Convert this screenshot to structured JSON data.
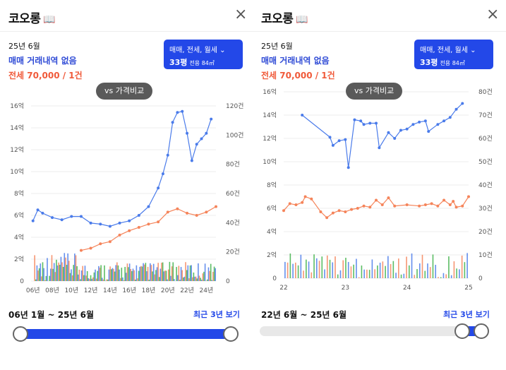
{
  "left": {
    "title": "코오롱",
    "close_label": "×",
    "date": "25년 6월",
    "sale_status": "매매 거래내역 없음",
    "rent_status": "전세 70,000 / 1건",
    "selector_line1": "매매, 전세, 월세",
    "selector_size": "33평",
    "selector_area": "전용 84㎡",
    "compare_label": "vs 가격비교",
    "range_label": "06년 1월 ~ 25년 6월",
    "recent_label": "최근 3년 보기"
  },
  "right": {
    "title": "코오롱",
    "close_label": "×",
    "date": "25년 6월",
    "sale_status": "매매 거래내역 없음",
    "rent_status": "전세 70,000 / 1건",
    "selector_line1": "매매, 전세, 월세",
    "selector_size": "33평",
    "selector_area": "전용 84㎡",
    "compare_label": "vs 가격비교",
    "range_label": "22년 6월 ~ 25년 6월",
    "recent_label": "최근 3년 보기"
  },
  "colors": {
    "sale": "#4a7bea",
    "rent": "#f5845a",
    "volume_green": "#3fb14a",
    "accent": "#2348e8"
  },
  "slider": {
    "left_full_range": [
      0,
      1
    ],
    "right_range": [
      0.85,
      1
    ]
  },
  "chart_data": [
    {
      "type": "line",
      "x": [
        "06년",
        "08년",
        "10년",
        "12년",
        "14년",
        "16년",
        "18년",
        "20년",
        "22년",
        "24년"
      ],
      "y_left_ticks": [
        "0",
        "2억",
        "4억",
        "6억",
        "8억",
        "10억",
        "12억",
        "14억",
        "16억"
      ],
      "y_right_ticks": [
        "0",
        "20건",
        "40건",
        "60건",
        "80건",
        "100건",
        "120건"
      ],
      "ylim": [
        0,
        16
      ],
      "y2lim": [
        0,
        120
      ],
      "series": [
        {
          "kind": "sale",
          "points": [
            [
              2006,
              5.5
            ],
            [
              2006.5,
              6.5
            ],
            [
              2007,
              6.2
            ],
            [
              2008,
              5.8
            ],
            [
              2009,
              5.6
            ],
            [
              2010,
              5.9
            ],
            [
              2011,
              5.9
            ],
            [
              2012,
              5.3
            ],
            [
              2013,
              5.2
            ],
            [
              2014,
              5.0
            ],
            [
              2015,
              5.3
            ],
            [
              2016,
              5.5
            ],
            [
              2017,
              6.0
            ],
            [
              2018,
              6.8
            ],
            [
              2019,
              8.5
            ],
            [
              2019.5,
              9.8
            ],
            [
              2020,
              11.5
            ],
            [
              2020.5,
              14.5
            ],
            [
              2021,
              15.4
            ],
            [
              2021.5,
              15.5
            ],
            [
              2022,
              13.5
            ],
            [
              2022.5,
              11.0
            ],
            [
              2023,
              12.5
            ],
            [
              2023.5,
              13.0
            ],
            [
              2024,
              13.5
            ],
            [
              2024.5,
              14.8
            ]
          ]
        },
        {
          "kind": "rent",
          "points": [
            [
              2011,
              2.8
            ],
            [
              2012,
              3.0
            ],
            [
              2013,
              3.4
            ],
            [
              2014,
              3.6
            ],
            [
              2015,
              4.2
            ],
            [
              2016,
              4.6
            ],
            [
              2017,
              4.9
            ],
            [
              2018,
              5.2
            ],
            [
              2019,
              5.4
            ],
            [
              2020,
              6.3
            ],
            [
              2021,
              6.6
            ],
            [
              2022,
              6.2
            ],
            [
              2023,
              6.0
            ],
            [
              2024,
              6.3
            ],
            [
              2025,
              6.8
            ]
          ]
        }
      ]
    },
    {
      "type": "line",
      "x": [
        "22",
        "23",
        "24",
        "25"
      ],
      "y_left_ticks": [
        "0",
        "2억",
        "4억",
        "6억",
        "8억",
        "10억",
        "12억",
        "14억",
        "16억"
      ],
      "y_right_ticks": [
        "0",
        "10건",
        "20건",
        "30건",
        "40건",
        "50건",
        "60건",
        "70건",
        "80건"
      ],
      "ylim": [
        0,
        16
      ],
      "y2lim": [
        0,
        80
      ],
      "series": [
        {
          "kind": "sale",
          "points": [
            [
              22.3,
              14.0
            ],
            [
              22.75,
              12.1
            ],
            [
              22.8,
              11.4
            ],
            [
              22.9,
              11.8
            ],
            [
              23.0,
              11.9
            ],
            [
              23.05,
              9.5
            ],
            [
              23.15,
              13.6
            ],
            [
              23.25,
              13.5
            ],
            [
              23.3,
              13.2
            ],
            [
              23.4,
              13.3
            ],
            [
              23.5,
              13.3
            ],
            [
              23.55,
              11.2
            ],
            [
              23.7,
              12.5
            ],
            [
              23.8,
              12.0
            ],
            [
              23.9,
              12.7
            ],
            [
              24.0,
              12.8
            ],
            [
              24.1,
              13.2
            ],
            [
              24.2,
              13.4
            ],
            [
              24.3,
              13.5
            ],
            [
              24.35,
              12.6
            ],
            [
              24.5,
              13.2
            ],
            [
              24.6,
              13.5
            ],
            [
              24.7,
              13.8
            ],
            [
              24.8,
              14.5
            ],
            [
              24.9,
              15.0
            ]
          ]
        },
        {
          "kind": "rent",
          "points": [
            [
              22.0,
              5.8
            ],
            [
              22.1,
              6.4
            ],
            [
              22.2,
              6.3
            ],
            [
              22.3,
              6.5
            ],
            [
              22.35,
              7.0
            ],
            [
              22.45,
              6.8
            ],
            [
              22.6,
              5.7
            ],
            [
              22.7,
              5.2
            ],
            [
              22.8,
              5.6
            ],
            [
              22.9,
              5.8
            ],
            [
              23.0,
              5.7
            ],
            [
              23.1,
              5.9
            ],
            [
              23.2,
              6.0
            ],
            [
              23.3,
              6.2
            ],
            [
              23.4,
              6.1
            ],
            [
              23.5,
              6.7
            ],
            [
              23.6,
              6.3
            ],
            [
              23.7,
              6.9
            ],
            [
              23.8,
              6.2
            ],
            [
              24.0,
              6.3
            ],
            [
              24.2,
              6.2
            ],
            [
              24.3,
              6.3
            ],
            [
              24.4,
              6.4
            ],
            [
              24.5,
              6.2
            ],
            [
              24.6,
              6.7
            ],
            [
              24.7,
              6.3
            ],
            [
              24.75,
              6.6
            ],
            [
              24.8,
              6.1
            ],
            [
              24.9,
              6.2
            ],
            [
              25.0,
              7.0
            ]
          ]
        }
      ]
    }
  ]
}
